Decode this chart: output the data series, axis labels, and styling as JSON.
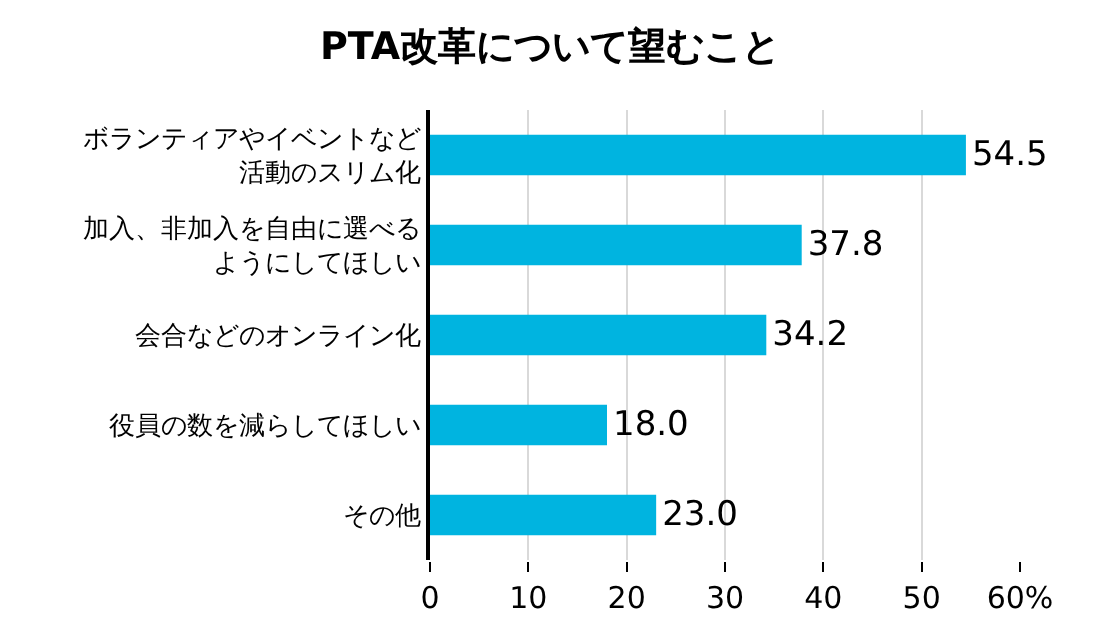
{
  "chart_data": {
    "type": "bar",
    "orientation": "horizontal",
    "title": "PTA改革について望むこと",
    "categories": [
      "ボランティアやイベントなど活動のスリム化",
      "加入、非加入を自由に選べるようにしてほしい",
      "会合などのオンライン化",
      "役員の数を減らしてほしい",
      "その他"
    ],
    "values": [
      54.5,
      37.8,
      34.2,
      18.0,
      23.0
    ],
    "value_labels": [
      "54.5",
      "37.8",
      "34.2",
      "18.0",
      "23.0"
    ],
    "color": "#00b4e0",
    "xlim": [
      0,
      60
    ],
    "xticks": [
      0,
      10,
      20,
      30,
      40,
      50,
      {
        "value": 60,
        "label": "60%"
      }
    ],
    "grid": "x",
    "legend": false
  }
}
